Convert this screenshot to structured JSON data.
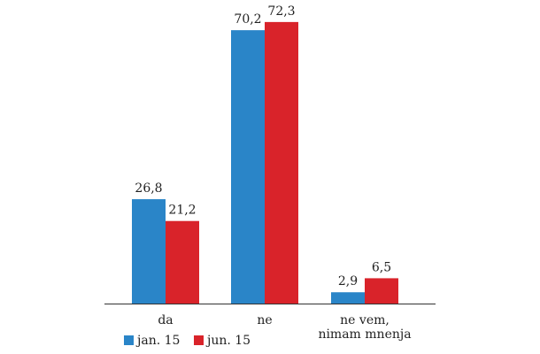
{
  "chart_data": {
    "type": "bar",
    "categories": [
      "da",
      "ne",
      "ne vem,\nnimam mnenja"
    ],
    "series": [
      {
        "name": "jan. 15",
        "values": [
          26.8,
          70.2,
          2.9
        ],
        "labels": [
          "26,8",
          "70,2",
          "2,9"
        ],
        "color": "#2a85c8"
      },
      {
        "name": "jun. 15",
        "values": [
          21.2,
          72.3,
          6.5
        ],
        "labels": [
          "21,2",
          "72,3",
          "6,5"
        ],
        "color": "#d9232a"
      }
    ],
    "ylim": [
      0,
      80
    ],
    "grid": false,
    "legend": "bottom-left",
    "axis_color": "#333333"
  }
}
